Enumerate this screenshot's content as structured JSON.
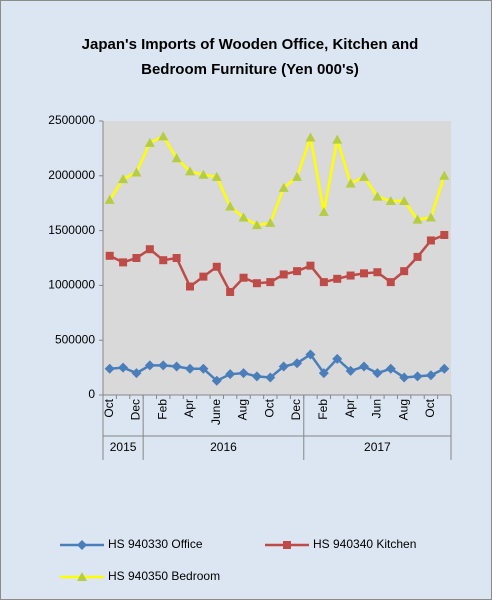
{
  "chart_data": {
    "type": "line",
    "title": [
      "Japan's Imports of  Wooden  Office, Kitchen and",
      "Bedroom Furniture (Yen 000's)"
    ],
    "categories": [
      "Oct",
      null,
      "Dec",
      null,
      "Feb",
      null,
      "Apr",
      null,
      "June",
      null,
      "Aug",
      null,
      "Oct",
      null,
      "Dec",
      null,
      "Feb",
      null,
      "Apr",
      null,
      "Jun",
      null,
      "Aug",
      null,
      "Oct",
      null
    ],
    "year_groups": [
      {
        "label": "2015",
        "count": 3
      },
      {
        "label": "2016",
        "count": 12
      },
      {
        "label": "2017",
        "count": 11
      }
    ],
    "series": [
      {
        "name": "HS 940330 Office",
        "color": "#4a7ebb",
        "marker": "diamond",
        "marker_color": "#4a7ebb",
        "values": [
          240000,
          250000,
          200000,
          270000,
          270000,
          260000,
          240000,
          240000,
          130000,
          190000,
          200000,
          170000,
          160000,
          260000,
          290000,
          370000,
          200000,
          330000,
          220000,
          260000,
          200000,
          240000,
          160000,
          170000,
          180000,
          240000
        ]
      },
      {
        "name": "HS 940340 Kitchen",
        "color": "#be4b48",
        "marker": "square",
        "marker_color": "#be4b48",
        "values": [
          1270000,
          1210000,
          1250000,
          1330000,
          1230000,
          1250000,
          990000,
          1080000,
          1170000,
          940000,
          1070000,
          1020000,
          1030000,
          1100000,
          1130000,
          1180000,
          1030000,
          1060000,
          1090000,
          1110000,
          1120000,
          1030000,
          1130000,
          1260000,
          1410000,
          1460000
        ]
      },
      {
        "name": "HS 940350 Bedroom",
        "color": "#ffff00",
        "marker": "triangle",
        "marker_color": "#b5cc44",
        "values": [
          1780000,
          1970000,
          2030000,
          2300000,
          2360000,
          2160000,
          2040000,
          2010000,
          1990000,
          1720000,
          1620000,
          1550000,
          1570000,
          1890000,
          1990000,
          2350000,
          1670000,
          2330000,
          1930000,
          1990000,
          1810000,
          1770000,
          1770000,
          1600000,
          1620000,
          2000000
        ]
      }
    ],
    "ylim": [
      0,
      2500000
    ],
    "yticks": [
      0,
      500000,
      1000000,
      1500000,
      2000000,
      2500000
    ],
    "grid": false
  }
}
